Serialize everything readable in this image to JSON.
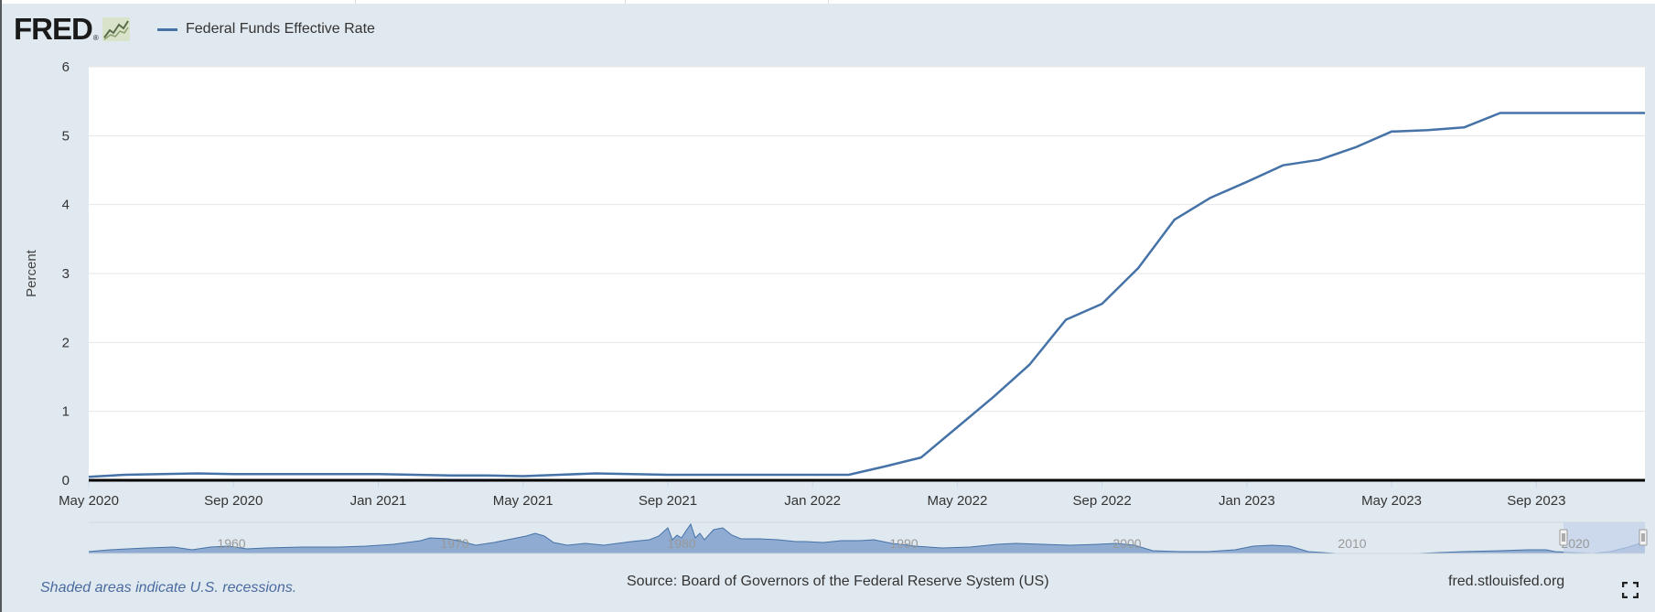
{
  "brand": {
    "logo": "FRED",
    "reg_mark": "®"
  },
  "icons": {
    "chart_icon": "line-chart-icon",
    "fullscreen_icon": "fullscreen-icon"
  },
  "colors": {
    "series": "#4572a7",
    "background": "#e1e9f0",
    "plot_bg": "#ffffff",
    "navigator_fill": "#7b9bc9",
    "navigator_window": "#c3d1ea"
  },
  "chart_data": {
    "type": "line",
    "title": "",
    "ylabel": "Percent",
    "xlabel": "",
    "ylim": [
      0,
      6
    ],
    "yticks": [
      "0",
      "1",
      "2",
      "3",
      "4",
      "5",
      "6"
    ],
    "xticks": [
      "May 2020",
      "Sep 2020",
      "Jan 2021",
      "May 2021",
      "Sep 2021",
      "Jan 2022",
      "May 2022",
      "Sep 2022",
      "Jan 2023",
      "May 2023",
      "Sep 2023"
    ],
    "x_range": [
      "May 2020",
      "Dec 2023"
    ],
    "grid": true,
    "series": [
      {
        "name": "Federal Funds Effective Rate",
        "x": [
          "2020-05",
          "2020-06",
          "2020-07",
          "2020-08",
          "2020-09",
          "2020-10",
          "2020-11",
          "2020-12",
          "2021-01",
          "2021-02",
          "2021-03",
          "2021-04",
          "2021-05",
          "2021-06",
          "2021-07",
          "2021-08",
          "2021-09",
          "2021-10",
          "2021-11",
          "2021-12",
          "2022-01",
          "2022-02",
          "2022-03",
          "2022-04",
          "2022-05",
          "2022-06",
          "2022-07",
          "2022-08",
          "2022-09",
          "2022-10",
          "2022-11",
          "2022-12",
          "2023-01",
          "2023-02",
          "2023-03",
          "2023-04",
          "2023-05",
          "2023-06",
          "2023-07",
          "2023-08",
          "2023-09",
          "2023-10",
          "2023-11",
          "2023-12"
        ],
        "values": [
          0.05,
          0.08,
          0.09,
          0.1,
          0.09,
          0.09,
          0.09,
          0.09,
          0.09,
          0.08,
          0.07,
          0.07,
          0.06,
          0.08,
          0.1,
          0.09,
          0.08,
          0.08,
          0.08,
          0.08,
          0.08,
          0.08,
          0.2,
          0.33,
          0.77,
          1.21,
          1.68,
          2.33,
          2.56,
          3.08,
          3.78,
          4.1,
          4.33,
          4.57,
          4.65,
          4.83,
          5.06,
          5.08,
          5.12,
          5.33,
          5.33,
          5.33,
          5.33,
          5.33
        ]
      }
    ],
    "legend": "top-left"
  },
  "navigator": {
    "labels": [
      "1960",
      "1970",
      "1980",
      "1990",
      "2000",
      "2010",
      "2020"
    ]
  },
  "footer": {
    "note": "Shaded areas indicate U.S. recessions.",
    "source": "Source: Board of Governors of the Federal Reserve System (US)",
    "site": "fred.stlouisfed.org"
  }
}
